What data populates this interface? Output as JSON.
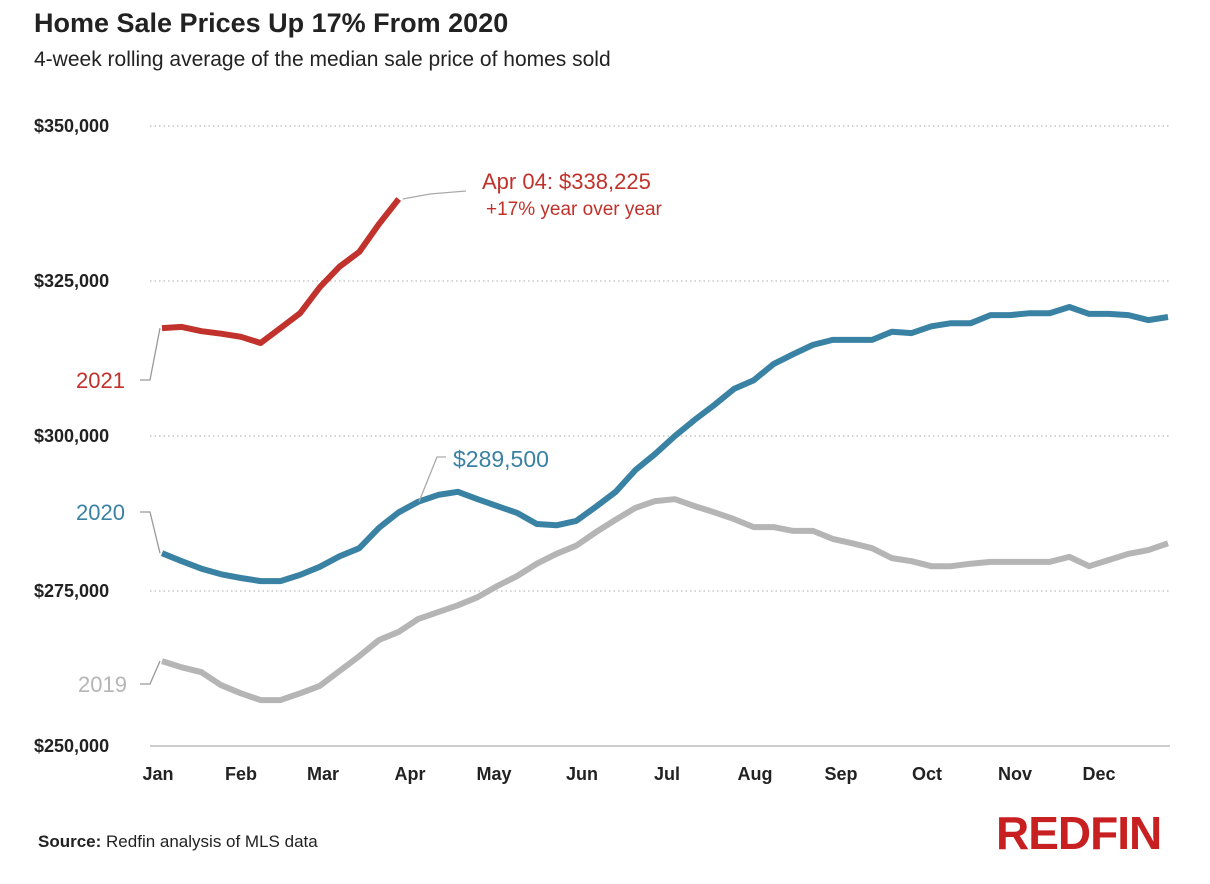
{
  "header": {
    "title": "Home Sale Prices Up 17% From 2020",
    "subtitle": "4-week rolling average of the median sale price of homes sold"
  },
  "footer": {
    "source_label": "Source:",
    "source_text": "Redfin analysis of MLS data",
    "logo": "REDFIN"
  },
  "chart_data": {
    "type": "line",
    "title": "Home Sale Prices Up 17% From 2020",
    "subtitle": "4-week rolling average of the median sale price of homes sold",
    "xlabel": "",
    "ylabel": "",
    "ylim": [
      250000,
      350000
    ],
    "yticks": [
      250000,
      275000,
      300000,
      325000,
      350000
    ],
    "ytick_labels": [
      "$250,000",
      "$275,000",
      "$300,000",
      "$325,000",
      "$350,000"
    ],
    "xtick_labels": [
      "Jan",
      "Feb",
      "Mar",
      "Apr",
      "May",
      "Jun",
      "Jul",
      "Aug",
      "Sep",
      "Oct",
      "Nov",
      "Dec"
    ],
    "grid": "horizontal dotted",
    "frequency": "weekly",
    "series": [
      {
        "name": "2019",
        "color": "#b5b5b5",
        "values": [
          263700,
          262700,
          261900,
          259800,
          258500,
          257400,
          257400,
          258500,
          259700,
          262100,
          264500,
          267100,
          268400,
          270500,
          271600,
          272700,
          274000,
          275800,
          277400,
          279400,
          281000,
          282300,
          284500,
          286500,
          288400,
          289500,
          289800,
          288700,
          287700,
          286600,
          285300,
          285300,
          284700,
          284700,
          283400,
          282700,
          281900,
          280300,
          279800,
          279000,
          279000,
          279400,
          279700,
          279700,
          279700,
          279700,
          280500,
          279000,
          280000,
          281000,
          281600,
          282700
        ]
      },
      {
        "name": "2020",
        "color": "#3a82a3",
        "values": [
          281100,
          279800,
          278600,
          277700,
          277100,
          276600,
          276600,
          277600,
          278900,
          280600,
          281900,
          285200,
          287700,
          289400,
          290500,
          291000,
          289800,
          288700,
          287600,
          285800,
          285600,
          286300,
          288600,
          291000,
          294500,
          297100,
          300000,
          302600,
          305000,
          307600,
          309000,
          311600,
          313200,
          314700,
          315500,
          315500,
          315500,
          316800,
          316600,
          317700,
          318200,
          318200,
          319500,
          319500,
          319800,
          319800,
          320800,
          319700,
          319700,
          319500,
          318700,
          319200
        ]
      },
      {
        "name": "2021",
        "color": "#c0322b",
        "values": [
          317400,
          317600,
          316900,
          316500,
          316000,
          315000,
          317400,
          319800,
          324000,
          327300,
          329700,
          334200,
          338225
        ]
      }
    ],
    "annotations": [
      {
        "series": "2021",
        "line1": "Apr 04: $338,225",
        "line2": "+17% year over year",
        "color": "#c0322b"
      },
      {
        "series": "2020",
        "line1": "$289,500",
        "color": "#3a82a3"
      }
    ]
  }
}
